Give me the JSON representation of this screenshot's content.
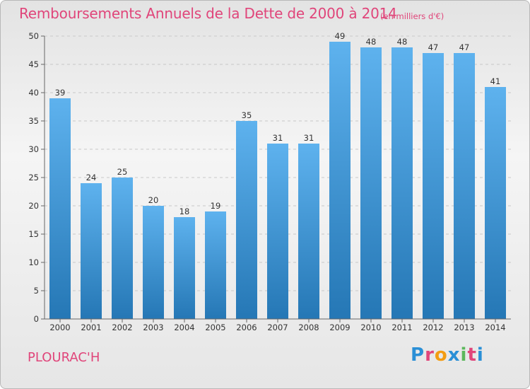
{
  "title": "Remboursements Annuels de la Dette de 2000 à 2014",
  "subtitle": "(en milliers d'€)",
  "commune": "PLOURAC'H",
  "logo": {
    "text": "Proxiti",
    "colors": [
      "#2a8fd6",
      "#e0457a",
      "#f39c12",
      "#2a8fd6",
      "#5cb85c",
      "#e0457a",
      "#2a8fd6"
    ]
  },
  "colors": {
    "bar_light": "#5eb2ee",
    "bar_dark": "#2577b5",
    "accent": "#e0457a",
    "grid": "#c8c8c8"
  },
  "chart_data": {
    "type": "bar",
    "categories": [
      "2000",
      "2001",
      "2002",
      "2003",
      "2004",
      "2005",
      "2006",
      "2007",
      "2008",
      "2009",
      "2010",
      "2011",
      "2012",
      "2013",
      "2014"
    ],
    "values": [
      39,
      24,
      25,
      20,
      18,
      19,
      35,
      31,
      31,
      49,
      48,
      48,
      47,
      47,
      41
    ],
    "title": "Remboursements Annuels de la Dette de 2000 à 2014",
    "xlabel": "",
    "ylabel": "",
    "ylim": [
      0,
      50
    ],
    "yticks": [
      0,
      5,
      10,
      15,
      20,
      25,
      30,
      35,
      40,
      45,
      50
    ],
    "grid": true,
    "data_labels": true
  }
}
